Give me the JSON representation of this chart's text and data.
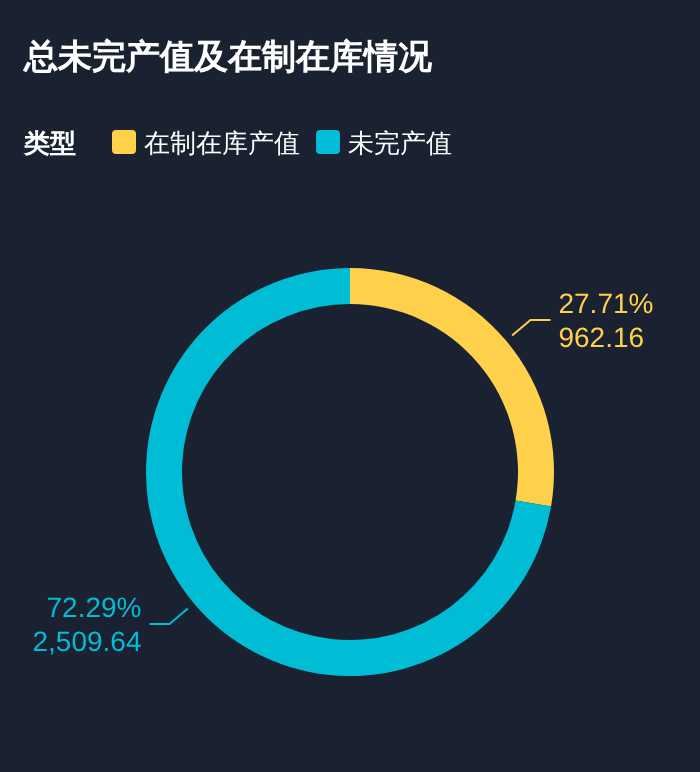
{
  "chart_data": {
    "type": "donut",
    "title": "总未完产值及在制在库情况",
    "legend_title": "类型",
    "legend": "top left",
    "categories": [
      "在制在库产值",
      "未完产值"
    ],
    "values": [
      962.16,
      2509.64
    ],
    "colors": [
      "#ffd04a",
      "#00bcd4"
    ],
    "value_labels": [
      "27.71%\n962.16",
      "72.29%\n2,509.64"
    ]
  }
}
